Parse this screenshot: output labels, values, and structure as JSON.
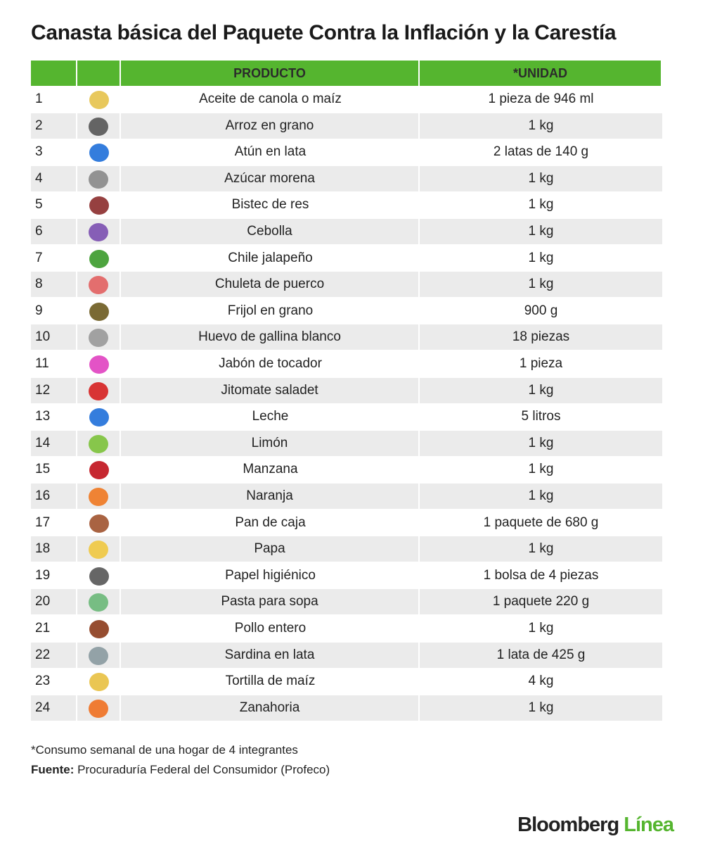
{
  "header": {
    "title": "Canasta básica del Paquete Contra la Inflación y la Carestía"
  },
  "table": {
    "columns": [
      "PRODUCTO",
      "*UNIDAD"
    ],
    "rows": [
      [
        1,
        "Aceite de canola o maíz",
        "1 pieza de 946 ml"
      ],
      [
        2,
        "Arroz en grano",
        "1 kg"
      ],
      [
        3,
        "Atún en lata",
        "2 latas de 140 g"
      ],
      [
        4,
        "Azúcar morena",
        "1 kg"
      ],
      [
        5,
        "Bistec de res",
        "1 kg"
      ],
      [
        6,
        "Cebolla",
        "1 kg"
      ],
      [
        7,
        "Chile jalapeño",
        "1 kg"
      ],
      [
        8,
        "Chuleta de puerco",
        "1 kg"
      ],
      [
        9,
        "Frijol en grano",
        "900 g"
      ],
      [
        10,
        "Huevo de gallina blanco",
        "18 piezas"
      ],
      [
        11,
        "Jabón de tocador",
        "1 pieza"
      ],
      [
        12,
        "Jitomate saladet",
        "1 kg"
      ],
      [
        13,
        "Leche",
        "5 litros"
      ],
      [
        14,
        "Limón",
        "1 kg"
      ],
      [
        15,
        "Manzana",
        "1 kg"
      ],
      [
        16,
        "Naranja",
        "1 kg"
      ],
      [
        17,
        "Pan de caja",
        "1 paquete de 680 g"
      ],
      [
        18,
        "Papa",
        "1 kg"
      ],
      [
        19,
        "Papel higiénico",
        "1 bolsa de 4 piezas"
      ],
      [
        20,
        "Pasta para sopa",
        "1 paquete 220 g"
      ],
      [
        21,
        "Pollo entero",
        "1 kg"
      ],
      [
        22,
        "Sardina en lata",
        "1 lata de 425 g"
      ],
      [
        23,
        "Tortilla de maíz",
        "4 kg"
      ],
      [
        24,
        "Zanahoria",
        "1 kg"
      ]
    ]
  },
  "footer": {
    "note": "*Consumo semanal de una hogar de 4 integrantes",
    "source_label": "Fuente:",
    "source": "Procuraduría Federal del Consumidor (Profeco)"
  },
  "logo": {
    "brand": "Bloomberg",
    "suffix": "Línea"
  }
}
